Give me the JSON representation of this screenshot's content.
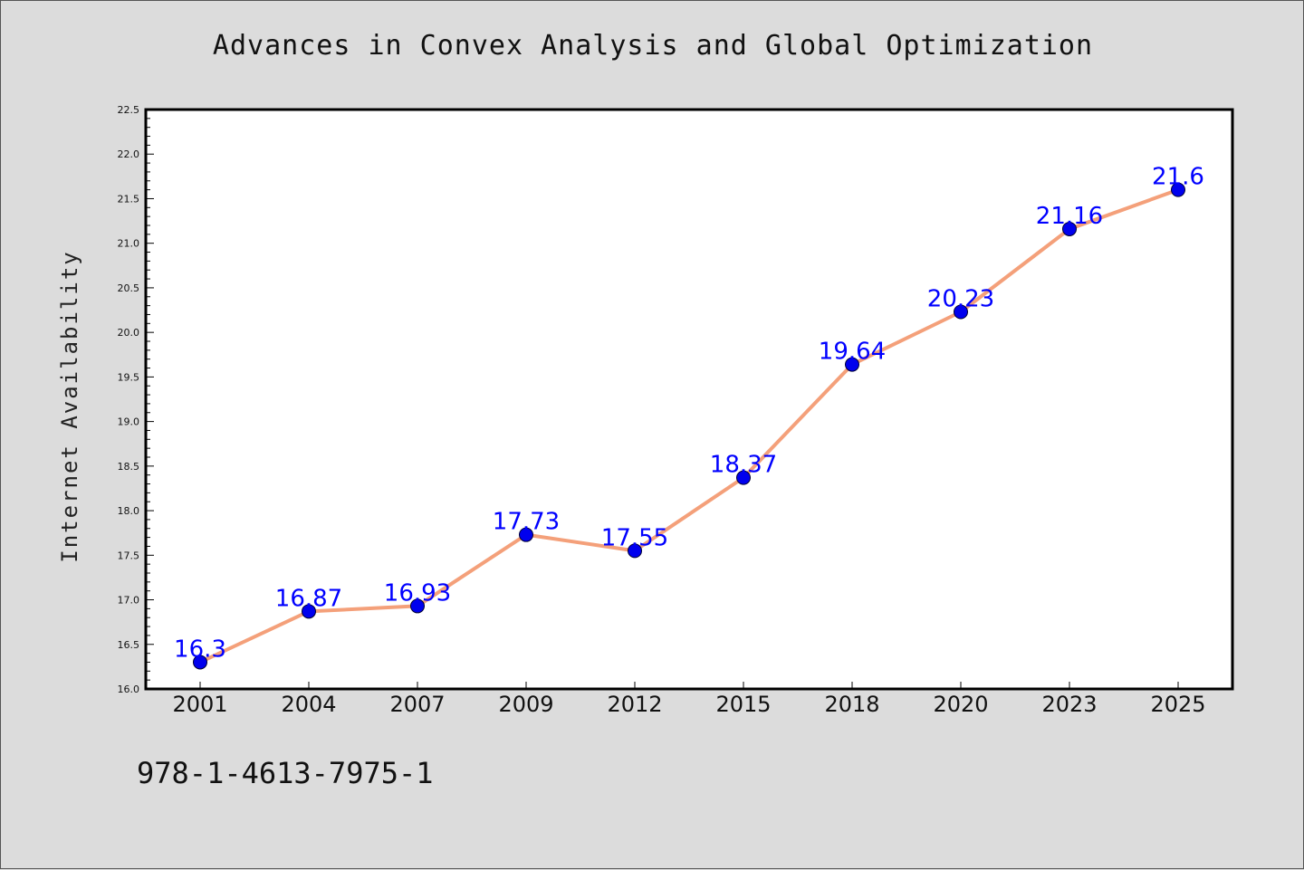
{
  "page": {
    "isbn": "978-1-4613-7975-1"
  },
  "chart_data": {
    "type": "line",
    "title": "Advances in Convex Analysis and Global Optimization",
    "xlabel": "",
    "ylabel": "Internet Availability",
    "categories": [
      "2001",
      "2004",
      "2007",
      "2009",
      "2012",
      "2015",
      "2018",
      "2020",
      "2023",
      "2025"
    ],
    "series": [
      {
        "values": [
          16.3,
          16.87,
          16.93,
          17.73,
          17.55,
          18.37,
          19.64,
          20.23,
          21.16,
          21.6
        ]
      }
    ],
    "data_labels": [
      "16.3",
      "16.87",
      "16.93",
      "17.73",
      "17.55",
      "18.37",
      "19.64",
      "20.23",
      "21.16",
      "21.6"
    ],
    "ylim": [
      16.0,
      22.5
    ],
    "yticks": [
      "16.0",
      "16.5",
      "17.0",
      "17.5",
      "18.0",
      "18.5",
      "19.0",
      "19.5",
      "20.0",
      "20.5",
      "21.0",
      "21.5",
      "22.0",
      "22.5"
    ],
    "grid": false,
    "legend": "none",
    "colors": {
      "line": "#f4a07a",
      "marker": "#0000ee",
      "data_label": "#0000ff",
      "plot_background": "#ffffff",
      "figure_background": "#dcdcdc"
    }
  }
}
